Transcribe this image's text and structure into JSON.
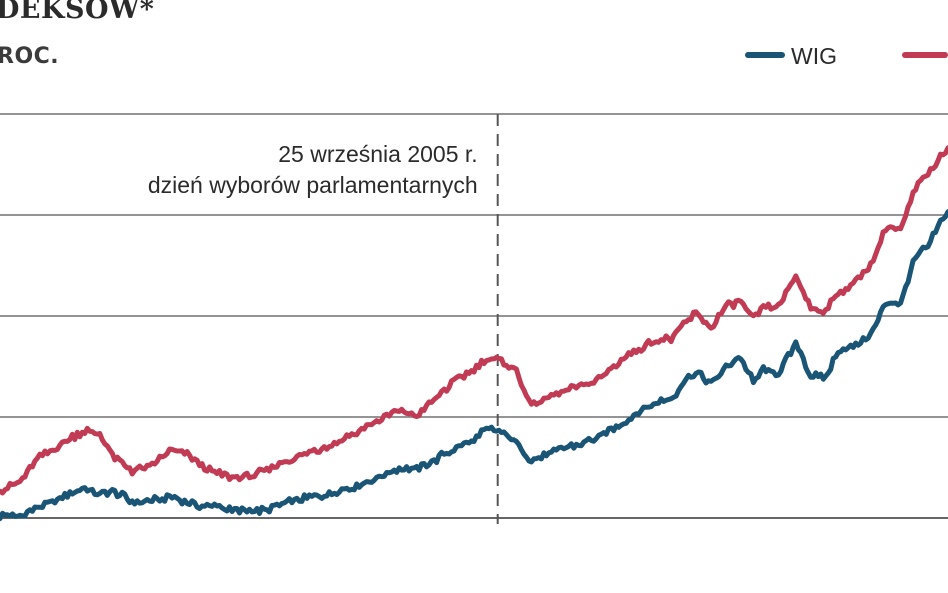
{
  "title_fragment": "DEKSÓW*",
  "subtitle_fragment": "ROC.",
  "colors": {
    "wig": "#1a5576",
    "second_series": "#c23b55",
    "grid": "#555555",
    "text": "#2b2b2b"
  },
  "chart_data": {
    "type": "line",
    "title": "",
    "xlabel": "",
    "ylabel": "",
    "grid": true,
    "legend": "top-right",
    "annotation": {
      "line1": "25 września 2005 r.",
      "line2": "dzień wyborów parlamentarnych",
      "x": 0.525
    },
    "series": [
      {
        "name": "WIG",
        "color": "#1a5576",
        "x": [
          0.0,
          0.02,
          0.04,
          0.06,
          0.075,
          0.09,
          0.105,
          0.12,
          0.14,
          0.16,
          0.18,
          0.2,
          0.215,
          0.23,
          0.245,
          0.26,
          0.28,
          0.3,
          0.32,
          0.34,
          0.36,
          0.38,
          0.4,
          0.42,
          0.44,
          0.46,
          0.48,
          0.5,
          0.51,
          0.52,
          0.535,
          0.545,
          0.56,
          0.575,
          0.59,
          0.61,
          0.63,
          0.65,
          0.67,
          0.69,
          0.71,
          0.72,
          0.735,
          0.75,
          0.765,
          0.78,
          0.795,
          0.805,
          0.82,
          0.84,
          0.855,
          0.87,
          0.885,
          0.9,
          0.92,
          0.935,
          0.95,
          0.965,
          0.98,
          0.99,
          1.0
        ],
        "values": [
          0.1,
          0.05,
          0.42,
          0.7,
          1.0,
          1.18,
          0.95,
          1.05,
          0.62,
          0.68,
          0.82,
          0.58,
          0.43,
          0.5,
          0.28,
          0.28,
          0.3,
          0.6,
          0.78,
          0.9,
          1.08,
          1.3,
          1.6,
          1.95,
          1.92,
          2.3,
          2.75,
          3.05,
          3.4,
          3.45,
          3.25,
          2.95,
          2.25,
          2.45,
          2.7,
          2.9,
          3.1,
          3.6,
          4.05,
          4.5,
          4.7,
          5.35,
          5.7,
          5.25,
          5.85,
          6.35,
          5.3,
          5.85,
          5.6,
          6.85,
          5.6,
          5.45,
          6.6,
          6.7,
          7.3,
          8.5,
          8.45,
          10.2,
          10.7,
          11.5,
          12.0
        ]
      },
      {
        "name": "",
        "color": "#c23b55",
        "x": [
          0.0,
          0.02,
          0.04,
          0.06,
          0.075,
          0.09,
          0.105,
          0.12,
          0.14,
          0.16,
          0.18,
          0.2,
          0.215,
          0.23,
          0.245,
          0.26,
          0.28,
          0.3,
          0.32,
          0.34,
          0.36,
          0.38,
          0.4,
          0.42,
          0.44,
          0.46,
          0.48,
          0.5,
          0.51,
          0.52,
          0.535,
          0.545,
          0.56,
          0.575,
          0.59,
          0.61,
          0.63,
          0.65,
          0.67,
          0.69,
          0.71,
          0.72,
          0.735,
          0.75,
          0.765,
          0.78,
          0.795,
          0.805,
          0.82,
          0.84,
          0.855,
          0.87,
          0.885,
          0.9,
          0.92,
          0.935,
          0.95,
          0.965,
          0.98,
          0.99,
          1.0
        ],
        "values": [
          1.1,
          1.35,
          2.3,
          2.8,
          3.15,
          3.45,
          3.3,
          2.4,
          1.85,
          2.05,
          2.65,
          2.45,
          1.95,
          1.75,
          1.6,
          1.6,
          1.85,
          2.25,
          2.45,
          2.75,
          3.05,
          3.45,
          3.85,
          4.2,
          4.05,
          4.7,
          5.4,
          5.85,
          6.2,
          6.25,
          6.05,
          5.75,
          4.4,
          4.65,
          4.9,
          5.15,
          5.4,
          6.05,
          6.55,
          6.95,
          7.05,
          7.6,
          8.05,
          7.45,
          8.25,
          8.55,
          7.8,
          8.3,
          8.25,
          9.5,
          8.25,
          8.1,
          8.85,
          9.2,
          10.0,
          11.5,
          11.3,
          12.9,
          13.6,
          14.1,
          14.6
        ]
      }
    ]
  }
}
